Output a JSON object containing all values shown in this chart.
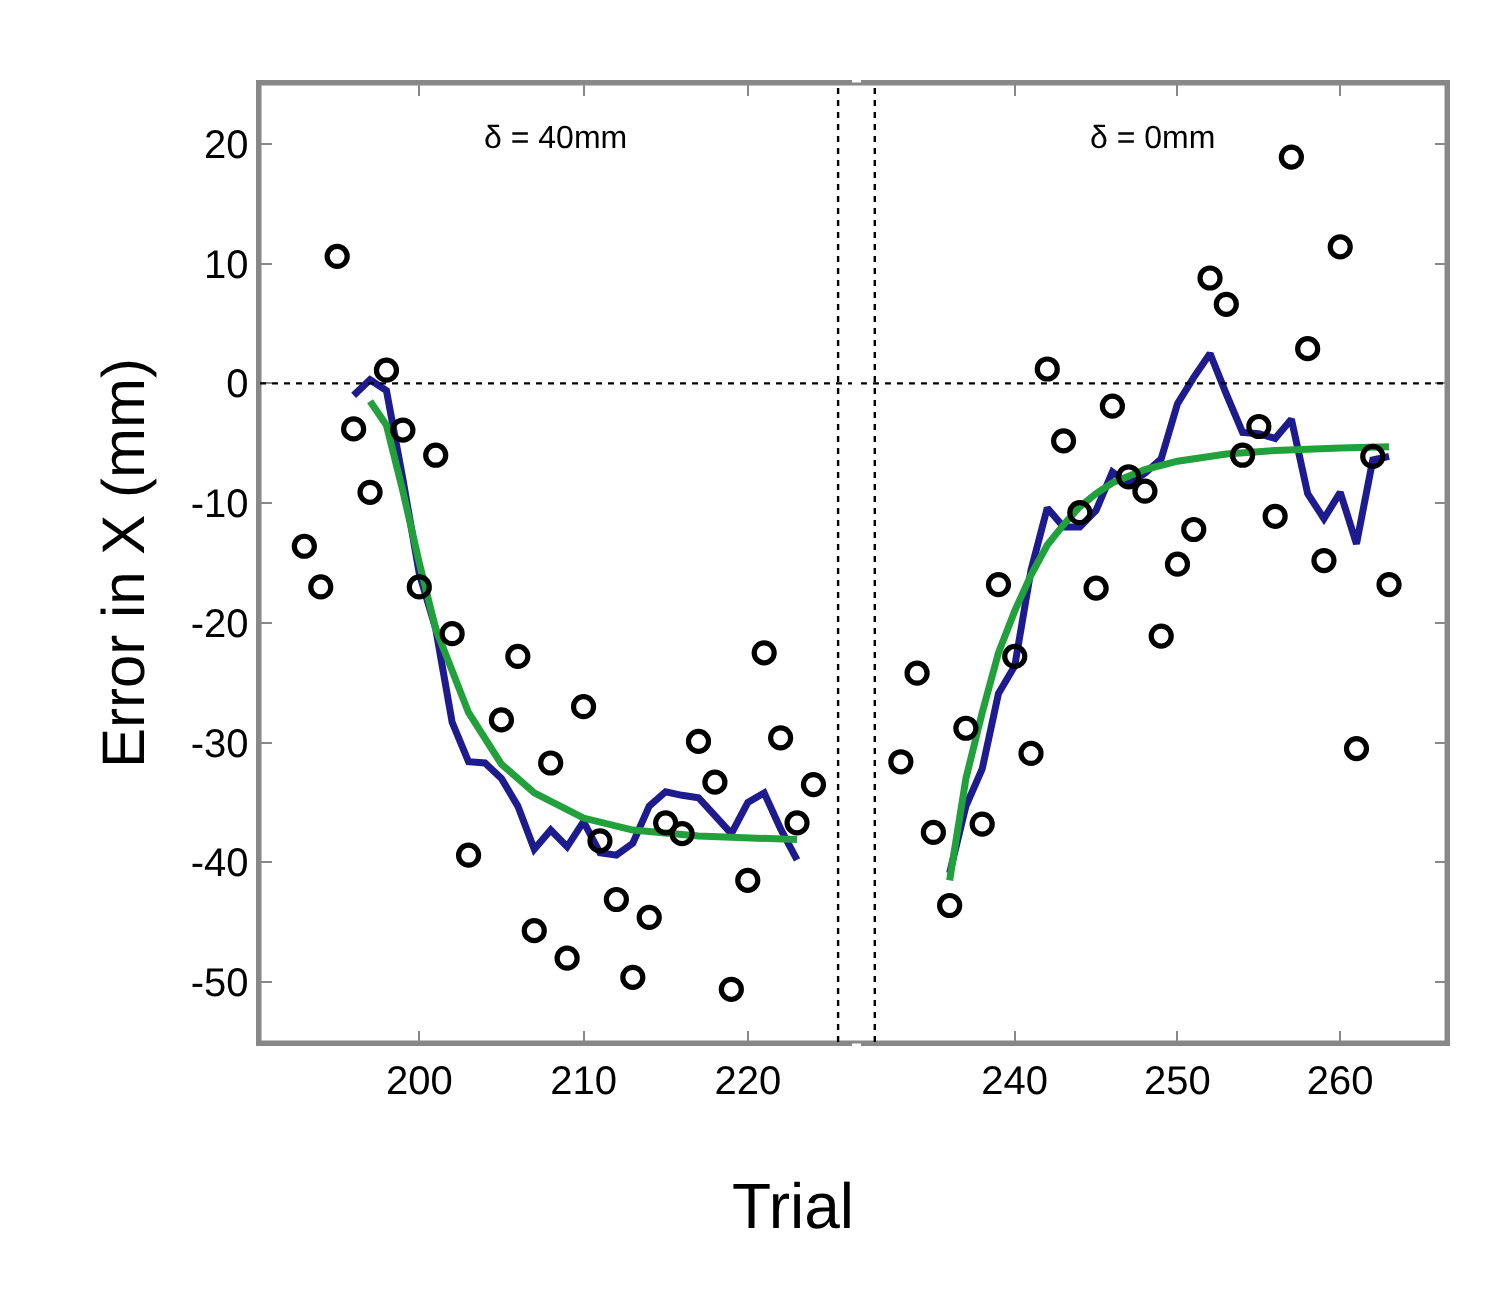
{
  "chart_data": [
    {
      "type": "scatter",
      "xlabel": "Trial",
      "ylabel": "Error in X (mm)",
      "annotations": [
        "δ = 40mm"
      ],
      "xlim": [
        190.3,
        226.35
      ],
      "xticks": [
        200,
        210,
        220
      ],
      "ylim": [
        -55,
        25
      ],
      "yticks": [
        -50,
        -40,
        -30,
        -20,
        -10,
        0,
        10,
        20
      ],
      "tick_labels": "xy",
      "ref_lines": [
        {
          "axis": "y",
          "value": 0,
          "line_style": "dotted",
          "color": "#000000"
        },
        {
          "axis": "x",
          "value": 225.5,
          "line_style": "dotted",
          "color": "#000000"
        }
      ],
      "series": [
        {
          "type": "scatter",
          "marker": "circle",
          "color": "#000000",
          "x": [
            193,
            194,
            195,
            196,
            197,
            198,
            199,
            200,
            201,
            202,
            203,
            205,
            206,
            207,
            208,
            209,
            210,
            211,
            212,
            213,
            214,
            215,
            216,
            217,
            218,
            219,
            220,
            221,
            222,
            223,
            224
          ],
          "values": [
            -13.6,
            -17,
            10.6,
            -3.8,
            -9.1,
            1.1,
            -3.9,
            -17,
            -6,
            -20.9,
            -39.4,
            -28.1,
            -22.8,
            -45.7,
            -31.7,
            -48,
            -27,
            -38.2,
            -43.1,
            -49.6,
            -44.6,
            -36.7,
            -37.6,
            -29.9,
            -33.3,
            -50.6,
            -41.5,
            -22.5,
            -29.6,
            -36.7,
            -33.5
          ]
        },
        {
          "type": "line",
          "marker": "none",
          "line_style": "solid",
          "color": "#1e1b8f",
          "x": [
            196,
            197,
            198,
            199,
            200,
            201,
            202,
            203,
            204,
            205,
            206,
            207,
            208,
            209,
            210,
            211,
            212,
            213,
            214,
            215,
            216,
            217,
            218,
            219,
            220,
            221,
            222,
            223
          ],
          "values": [
            -1,
            0.3,
            -0.6,
            -8,
            -15.9,
            -20.5,
            -28.3,
            -31.6,
            -31.7,
            -33,
            -35.3,
            -38.9,
            -37.3,
            -38.7,
            -36.6,
            -39.2,
            -39.4,
            -38.4,
            -35.3,
            -34.1,
            -34.4,
            -34.6,
            -36.1,
            -37.6,
            -35,
            -34.2,
            -37.2,
            -39.8
          ]
        },
        {
          "type": "line",
          "marker": "none",
          "line_style": "solid",
          "color": "#22a03c",
          "x": [
            197,
            198,
            199,
            200,
            201,
            202,
            203,
            205,
            207,
            210,
            213,
            217,
            223
          ],
          "values": [
            -1.5,
            -3.5,
            -9,
            -15,
            -20.5,
            -24,
            -27.5,
            -31.8,
            -34.2,
            -36.3,
            -37.3,
            -37.8,
            -38.1
          ]
        }
      ]
    },
    {
      "type": "scatter",
      "annotations": [
        "δ = 0mm"
      ],
      "xlim": [
        230.55,
        266.5
      ],
      "xticks": [
        240,
        250,
        260
      ],
      "ylim": [
        -55,
        25
      ],
      "yticks": [
        -50,
        -40,
        -30,
        -20,
        -10,
        0,
        10,
        20
      ],
      "tick_labels": "x",
      "ref_lines": [
        {
          "axis": "y",
          "value": 0,
          "line_style": "dotted",
          "color": "#000000"
        },
        {
          "axis": "x",
          "value": 231.4,
          "line_style": "dotted",
          "color": "#000000"
        }
      ],
      "series": [
        {
          "type": "scatter",
          "marker": "circle",
          "color": "#000000",
          "x": [
            233,
            234,
            235,
            236,
            237,
            238,
            239,
            240,
            241,
            242,
            243,
            244,
            245,
            246,
            247,
            248,
            249,
            250,
            251,
            252,
            253,
            254,
            255,
            256,
            257,
            258,
            259,
            260,
            261,
            262,
            263
          ],
          "values": [
            -31.6,
            -24.2,
            -37.5,
            -43.6,
            -28.8,
            -36.8,
            -16.8,
            -22.8,
            -30.9,
            1.2,
            -4.8,
            -10.8,
            -17.1,
            -1.9,
            -7.8,
            -9,
            -21.1,
            -15.1,
            -12.2,
            8.8,
            6.6,
            -6,
            -3.6,
            -11.1,
            18.9,
            2.9,
            -14.8,
            11.4,
            -30.5,
            -6.1,
            -16.8
          ]
        },
        {
          "type": "line",
          "marker": "none",
          "line_style": "solid",
          "color": "#1e1b8f",
          "x": [
            236,
            237,
            238,
            239,
            240,
            241,
            242,
            243,
            244,
            245,
            246,
            247,
            248,
            249,
            250,
            251,
            252,
            253,
            254,
            255,
            256,
            257,
            258,
            259,
            260,
            261,
            262,
            263
          ],
          "values": [
            -40.9,
            -35.3,
            -32.2,
            -25.9,
            -23.6,
            -15.6,
            -10.4,
            -12,
            -12,
            -10.6,
            -7.4,
            -8.4,
            -7.5,
            -6.3,
            -1.7,
            0.5,
            2.5,
            -0.9,
            -4.1,
            -4.2,
            -4.6,
            -3,
            -9.2,
            -11.3,
            -9.1,
            -13.4,
            -6.4,
            -6.1
          ]
        },
        {
          "type": "line",
          "marker": "none",
          "line_style": "solid",
          "color": "#22a03c",
          "x": [
            236,
            237,
            238,
            239,
            240,
            241,
            242,
            243,
            244,
            245,
            246,
            248,
            250,
            253,
            256,
            260,
            263
          ],
          "values": [
            -41.5,
            -33,
            -27.5,
            -22.5,
            -19,
            -16,
            -13.5,
            -11.8,
            -10.3,
            -9.2,
            -8.3,
            -7.2,
            -6.5,
            -5.9,
            -5.6,
            -5.4,
            -5.3
          ]
        }
      ]
    }
  ]
}
